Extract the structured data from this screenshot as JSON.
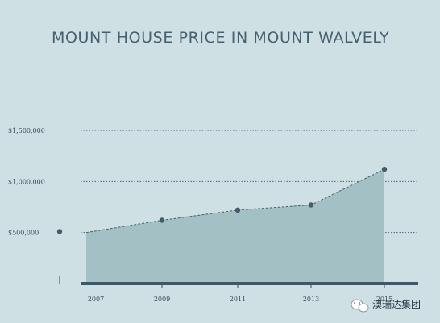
{
  "chart_data": {
    "type": "area",
    "title": "MOUNT HOUSE PRICE IN MOUNT WALVELY",
    "xlabel": "",
    "ylabel": "",
    "x_tick_labels": [
      "2007",
      "2009",
      "2011",
      "2013",
      "2015"
    ],
    "y_tick_labels": [
      "$500,000",
      "$1,000,000",
      "$1,500,000"
    ],
    "y_ticks": [
      500000,
      1000000,
      1500000
    ],
    "ylim": [
      0,
      1500000
    ],
    "xlim": [
      2006,
      2016
    ],
    "series": [
      {
        "x": [
          2007,
          2009,
          2011,
          2013,
          2015
        ],
        "values": [
          500000,
          620000,
          720000,
          770000,
          1120000
        ]
      }
    ],
    "outlier_point": {
      "x": 2006,
      "y": 510000
    },
    "grid": "horizontal dotted",
    "colors": {
      "background": "#cfe0e5",
      "area": "#a3c1c5",
      "line": "#44606d",
      "point": "#455c69",
      "axis": "#3f5868"
    }
  },
  "watermark": {
    "text": "澳瑞达集团",
    "icon": "wechat-icon"
  }
}
